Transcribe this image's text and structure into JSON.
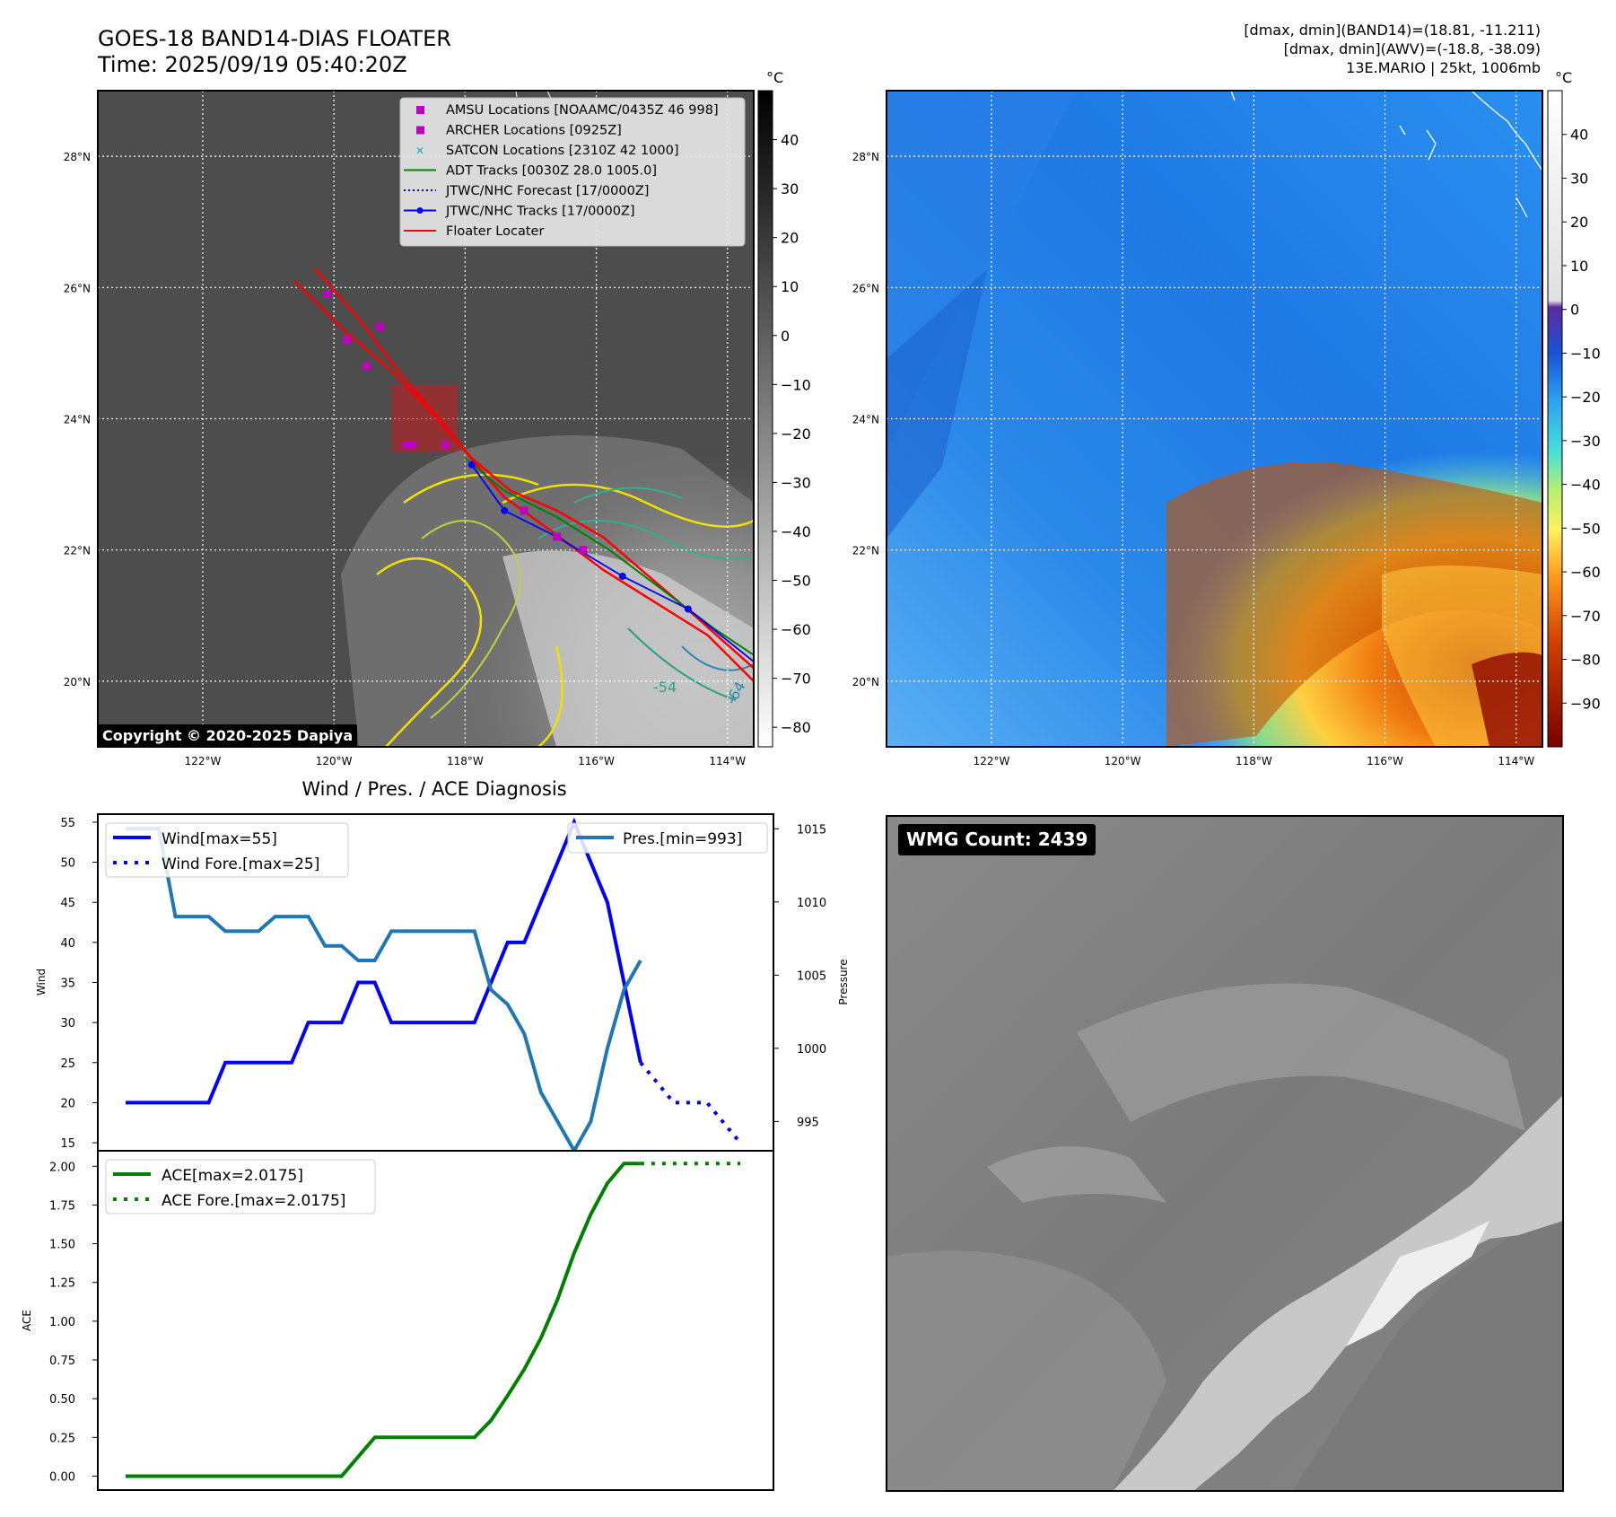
{
  "header": {
    "title_line1": "GOES-18 BAND14-DIAS FLOATER",
    "title_line2": "Time: 2025/09/19 05:40:20Z",
    "info_line1": "[dmax, dmin](BAND14)=(18.81, -11.211)",
    "info_line2": "[dmax, dmin](AWV)=(-18.8, -38.09)",
    "info_line3": "13E.MARIO | 25kt, 1006mb"
  },
  "maps": {
    "lat_labels": [
      "28°N",
      "26°N",
      "24°N",
      "22°N",
      "20°N"
    ],
    "lat_values": [
      28,
      26,
      24,
      22,
      20
    ],
    "lon_labels": [
      "122°W",
      "120°W",
      "118°W",
      "116°W",
      "114°W"
    ],
    "lon_values": [
      -122,
      -120,
      -118,
      -116,
      -114
    ],
    "lat_range": [
      19,
      29
    ],
    "lon_range": [
      -123.6,
      -113.6
    ],
    "copyright": "Copyright © 2020-2025 Dapiya",
    "contour_labels": [
      "-54",
      "-64"
    ]
  },
  "ir_colorbar": {
    "unit": "°C",
    "ticks": [
      "40",
      "30",
      "20",
      "10",
      "0",
      "−10",
      "−20",
      "−30",
      "−40",
      "−50",
      "−60",
      "−70",
      "−80"
    ],
    "tick_values": [
      40,
      30,
      20,
      10,
      0,
      -10,
      -20,
      -30,
      -40,
      -50,
      -60,
      -70,
      -80
    ],
    "range": [
      -84,
      50
    ]
  },
  "wv_colorbar": {
    "unit": "°C",
    "ticks": [
      "40",
      "30",
      "20",
      "10",
      "0",
      "−10",
      "−20",
      "−30",
      "−40",
      "−50",
      "−60",
      "−70",
      "−80",
      "−90"
    ],
    "tick_values": [
      40,
      30,
      20,
      10,
      0,
      -10,
      -20,
      -30,
      -40,
      -50,
      -60,
      -70,
      -80,
      -90
    ],
    "range": [
      -100,
      50
    ]
  },
  "legend": {
    "items": [
      {
        "label": "AMSU Locations [NOAAMC/0435Z 46 998]",
        "color": "#c000c0",
        "marker": "square"
      },
      {
        "label": "ARCHER Locations [0925Z]",
        "color": "#c000c0",
        "marker": "square"
      },
      {
        "label": "SATCON Locations [2310Z 42 1000]",
        "color": "#1aa7b5",
        "marker": "x"
      },
      {
        "label": "ADT Tracks [0030Z 28.0 1005.0]",
        "color": "#008000",
        "marker": "line"
      },
      {
        "label": "JTWC/NHC Forecast [17/0000Z]",
        "color": "#0000ff",
        "marker": "dotted"
      },
      {
        "label": "JTWC/NHC Tracks [17/0000Z]",
        "color": "#0000ff",
        "marker": "line-dot"
      },
      {
        "label": "Floater Locater",
        "color": "#ff0000",
        "marker": "line"
      }
    ]
  },
  "chart_data": [
    {
      "type": "line",
      "title": "Wind / Pres. / ACE Diagnosis",
      "ylabel": "Wind",
      "y2label": "Pressure",
      "ylim": [
        14,
        56
      ],
      "y2lim": [
        993,
        1016
      ],
      "yticks": [
        15,
        20,
        25,
        30,
        35,
        40,
        45,
        50,
        55
      ],
      "y2ticks": [
        995,
        1000,
        1005,
        1010,
        1015
      ],
      "series": [
        {
          "name": "Wind[max=55]",
          "color": "#0000ff",
          "style": "solid",
          "axis": "left",
          "x": [
            0,
            1,
            2,
            3,
            4,
            5,
            6,
            7,
            8,
            9,
            10,
            11,
            12,
            13,
            14,
            15,
            16,
            17,
            18,
            19,
            20,
            21,
            22,
            23,
            24,
            25,
            26,
            27,
            28,
            29,
            30,
            31
          ],
          "values": [
            20,
            20,
            20,
            20,
            20,
            20,
            25,
            25,
            25,
            25,
            25,
            30,
            30,
            30,
            35,
            35,
            30,
            30,
            30,
            30,
            30,
            30,
            35,
            40,
            40,
            45,
            50,
            55,
            50,
            45,
            35,
            25
          ]
        },
        {
          "name": "Wind Fore.[max=25]",
          "color": "#0000ff",
          "style": "dotted",
          "axis": "left",
          "x": [
            31,
            32,
            33,
            34,
            35,
            36,
            37
          ],
          "values": [
            25,
            22.5,
            20,
            20,
            20,
            17.5,
            15
          ]
        },
        {
          "name": "Pres.[min=993]",
          "color": "#1f77b4",
          "style": "solid",
          "axis": "right",
          "x": [
            0,
            1,
            2,
            3,
            4,
            5,
            6,
            7,
            8,
            9,
            10,
            11,
            12,
            13,
            14,
            15,
            16,
            17,
            18,
            19,
            20,
            21,
            22,
            23,
            24,
            25,
            26,
            27,
            28,
            29,
            30,
            31
          ],
          "values": [
            1015,
            1015,
            1015,
            1009,
            1009,
            1009,
            1008,
            1008,
            1008,
            1009,
            1009,
            1009,
            1007,
            1007,
            1006,
            1006,
            1008,
            1008,
            1008,
            1008,
            1008,
            1008,
            1004,
            1003,
            1001,
            997,
            995,
            993,
            995,
            1000,
            1004,
            1006
          ]
        }
      ]
    },
    {
      "type": "line",
      "ylabel": "ACE",
      "ylim": [
        -0.09,
        2.1
      ],
      "yticks": [
        "0.00",
        "0.25",
        "0.50",
        "0.75",
        "1.00",
        "1.25",
        "1.50",
        "1.75",
        "2.00"
      ],
      "ytick_values": [
        0,
        0.25,
        0.5,
        0.75,
        1.0,
        1.25,
        1.5,
        1.75,
        2.0
      ],
      "series": [
        {
          "name": "ACE[max=2.0175]",
          "color": "#008000",
          "style": "solid",
          "x": [
            0,
            1,
            2,
            3,
            4,
            5,
            6,
            7,
            8,
            9,
            10,
            11,
            12,
            13,
            14,
            15,
            16,
            17,
            18,
            19,
            20,
            21,
            22,
            23,
            24,
            25,
            26,
            27,
            28,
            29,
            30,
            31
          ],
          "values": [
            0,
            0,
            0,
            0,
            0,
            0,
            0,
            0,
            0,
            0,
            0,
            0,
            0,
            0,
            0.125,
            0.25,
            0.25,
            0.25,
            0.25,
            0.25,
            0.25,
            0.25,
            0.36,
            0.52,
            0.69,
            0.89,
            1.14,
            1.44,
            1.69,
            1.89,
            2.0175,
            2.0175
          ]
        },
        {
          "name": "ACE Fore.[max=2.0175]",
          "color": "#008000",
          "style": "dotted",
          "x": [
            31,
            32,
            33,
            34,
            35,
            36,
            37
          ],
          "values": [
            2.0175,
            2.0175,
            2.0175,
            2.0175,
            2.0175,
            2.0175,
            2.0175
          ]
        }
      ]
    }
  ],
  "wmg": {
    "label": "WMG Count: 2439"
  }
}
